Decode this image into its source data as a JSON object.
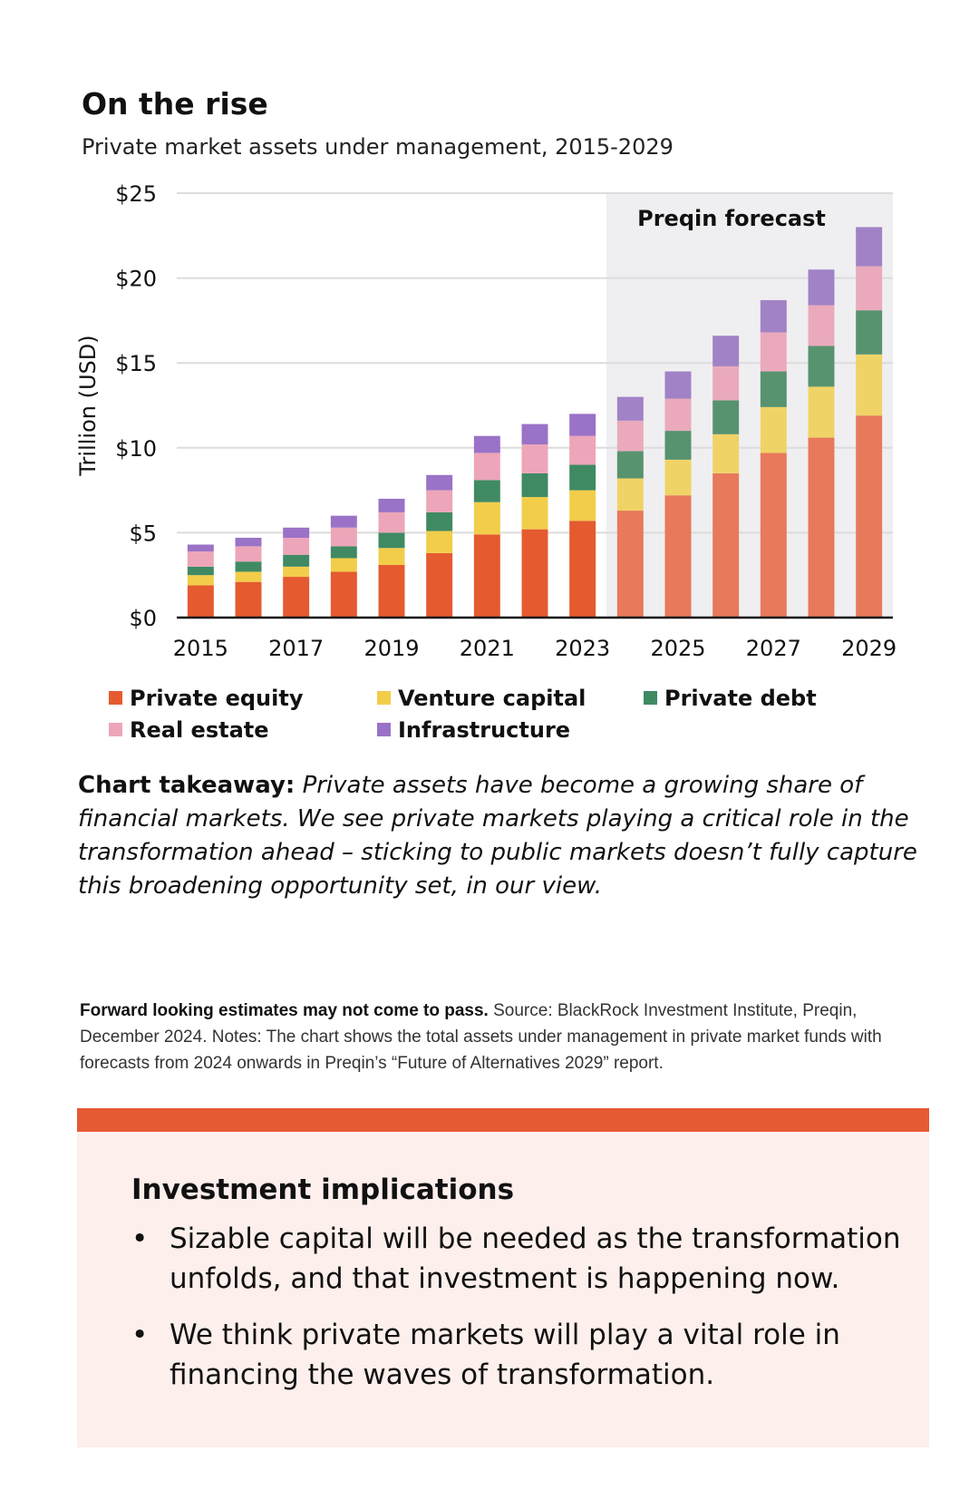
{
  "header": {
    "title": "On the rise",
    "subtitle": "Private market assets under management, 2015-2029"
  },
  "colors": {
    "private_equity": "#e55a2f",
    "private_equity_forecast": "#e8795a",
    "venture_capital": "#f2cd4a",
    "venture_capital_forecast": "#f0d366",
    "private_debt": "#3f8a63",
    "private_debt_forecast": "#57936f",
    "real_estate": "#eda5b9",
    "real_estate_forecast": "#eaaabc",
    "infrastructure": "#9a72c7",
    "infrastructure_forecast": "#a182c6",
    "forecast_shade": "#efeff1",
    "grid": "#dcdcdc",
    "accent": "#e65a33"
  },
  "chart_data": {
    "type": "bar",
    "stacked": true,
    "ylabel": "Trillion (USD)",
    "ylim": [
      0,
      25
    ],
    "y_ticks": [
      "$0",
      "$5",
      "$10",
      "$15",
      "$20",
      "$25"
    ],
    "y_tick_values": [
      0,
      5,
      10,
      15,
      20,
      25
    ],
    "x_tick_labels": [
      "2015",
      "2017",
      "2019",
      "2021",
      "2023",
      "2025",
      "2027",
      "2029"
    ],
    "categories": [
      "2015",
      "2016",
      "2017",
      "2018",
      "2019",
      "2020",
      "2021",
      "2022",
      "2023",
      "2024",
      "2025",
      "2026",
      "2027",
      "2028",
      "2029"
    ],
    "forecast_start": "2024",
    "forecast_label": "Preqin forecast",
    "grid": "horizontal",
    "legend_position": "bottom",
    "series": [
      {
        "name": "Private equity",
        "color_key": "private_equity",
        "values": [
          1.9,
          2.1,
          2.4,
          2.7,
          3.1,
          3.8,
          4.9,
          5.2,
          5.7,
          6.3,
          7.2,
          8.5,
          9.7,
          10.6,
          11.9
        ]
      },
      {
        "name": "Venture capital",
        "color_key": "venture_capital",
        "values": [
          0.6,
          0.6,
          0.6,
          0.8,
          1.0,
          1.3,
          1.9,
          1.9,
          1.8,
          1.9,
          2.1,
          2.3,
          2.7,
          3.0,
          3.6
        ]
      },
      {
        "name": "Private debt",
        "color_key": "private_debt",
        "values": [
          0.5,
          0.6,
          0.7,
          0.7,
          0.9,
          1.1,
          1.3,
          1.4,
          1.5,
          1.6,
          1.7,
          2.0,
          2.1,
          2.4,
          2.6
        ]
      },
      {
        "name": "Real estate",
        "color_key": "real_estate",
        "values": [
          0.9,
          0.9,
          1.0,
          1.1,
          1.2,
          1.3,
          1.6,
          1.7,
          1.7,
          1.8,
          1.9,
          2.0,
          2.3,
          2.4,
          2.6
        ]
      },
      {
        "name": "Infrastructure",
        "color_key": "infrastructure",
        "values": [
          0.4,
          0.5,
          0.6,
          0.7,
          0.8,
          0.9,
          1.0,
          1.2,
          1.3,
          1.4,
          1.6,
          1.8,
          1.9,
          2.1,
          2.3
        ]
      }
    ]
  },
  "legend": {
    "items": [
      {
        "label": "Private equity",
        "color_key": "private_equity"
      },
      {
        "label": "Venture capital",
        "color_key": "venture_capital"
      },
      {
        "label": "Private debt",
        "color_key": "private_debt"
      },
      {
        "label": "Real estate",
        "color_key": "real_estate"
      },
      {
        "label": "Infrastructure",
        "color_key": "infrastructure"
      }
    ]
  },
  "takeaway": {
    "label": "Chart takeaway:",
    "text": "Private assets have become a growing share of financial markets. We see private markets playing a critical role in the transformation ahead – sticking to public markets doesn’t fully capture this broadening opportunity set, in our view."
  },
  "notes": {
    "bold": "Forward looking estimates may not come to pass.",
    "text": "Source: BlackRock Investment Institute, Preqin, December 2024. Notes: The chart shows the total assets under management in private market funds with forecasts from 2024 onwards in Preqin’s “Future of Alternatives 2029” report."
  },
  "implications": {
    "title": "Investment implications",
    "bullet": "•",
    "items": [
      "Sizable capital will be needed as the transformation unfolds, and that investment is happening now.",
      "We think private markets will play a vital role in financing the waves of transformation."
    ]
  }
}
